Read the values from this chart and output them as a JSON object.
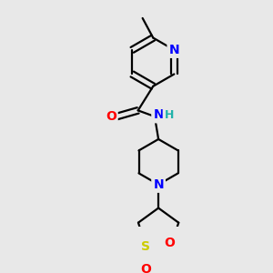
{
  "bg_color": "#e8e8e8",
  "atom_colors": {
    "N": "#0000ff",
    "O": "#ff0000",
    "S": "#cccc00",
    "H": "#20b2aa"
  },
  "bond_color": "#000000",
  "bond_width": 1.6,
  "font_size_atom": 10,
  "font_size_small": 9,
  "scale": 1.0
}
